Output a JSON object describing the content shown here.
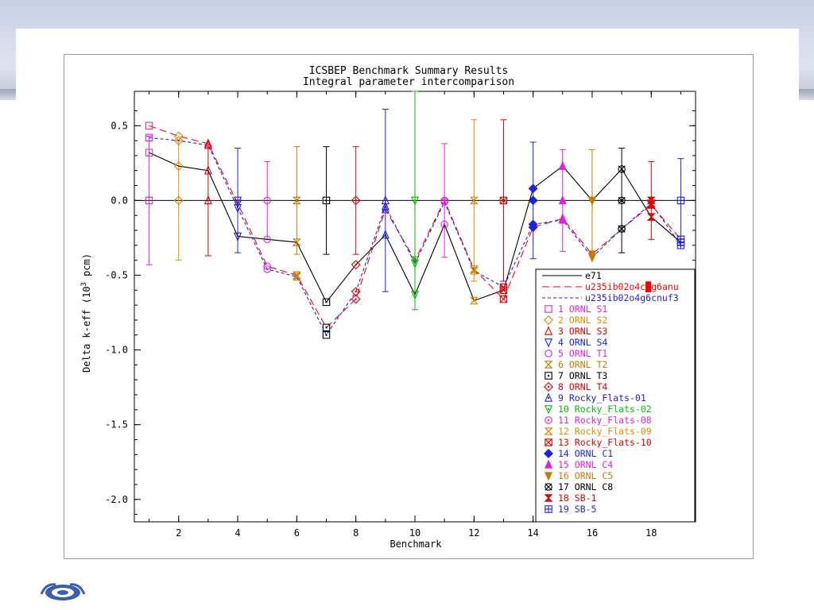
{
  "chart_data": {
    "type": "scatter",
    "title": "ICSBEP Benchmark Summary Results",
    "subtitle": "Integral parameter intercomparison",
    "xlabel": "Benchmark",
    "ylabel_main": "Delta k-eff (10",
    "ylabel_sup": "3",
    "ylabel_end": " pcm)",
    "xlim": [
      0.5,
      19.5
    ],
    "ylim": [
      -2.15,
      0.73
    ],
    "xticks": [
      2,
      4,
      6,
      8,
      10,
      12,
      14,
      16,
      18
    ],
    "yticks": [
      0.5,
      0.0,
      -0.5,
      -1.0,
      -1.5,
      -2.0
    ],
    "ytick_labels": [
      "0.5",
      "0.0",
      "-0.5",
      "-1.0",
      "-1.5",
      "-2.0"
    ],
    "x": [
      1,
      2,
      3,
      4,
      5,
      6,
      7,
      8,
      9,
      10,
      11,
      12,
      13,
      14,
      15,
      16,
      17,
      18,
      19
    ],
    "zero_line": 0,
    "errors": [
      0.43,
      0.4,
      0.37,
      0.35,
      0.26,
      0.36,
      0.36,
      0.36,
      0.61,
      0.73,
      0.38,
      0.54,
      0.54,
      0.39,
      0.34,
      0.34,
      0.35,
      0.26,
      0.28
    ],
    "error_colors": [
      "#e020e0",
      "#e08a00",
      "#e00000",
      "#2020e0",
      "#e020e0",
      "#c87800",
      "#000000",
      "#e00000",
      "#2020e0",
      "#00c000",
      "#e020e0",
      "#e08a00",
      "#e00000",
      "#2020e0",
      "#e020e0",
      "#c87800",
      "#000000",
      "#e00000",
      "#2020e0"
    ],
    "series": [
      {
        "name": "e71",
        "color": "#000000",
        "dash": "solid",
        "values": [
          0.32,
          0.23,
          0.2,
          -0.24,
          -0.26,
          -0.28,
          -0.68,
          -0.43,
          -0.23,
          -0.63,
          -0.16,
          -0.67,
          -0.6,
          0.08,
          0.23,
          0.0,
          0.21,
          -0.11,
          -0.28
        ]
      },
      {
        "name": "u235ib02o4c█g6anu",
        "color": "#ff0000",
        "dash": "long",
        "values": [
          0.5,
          0.43,
          0.38,
          -0.02,
          -0.44,
          -0.5,
          -0.85,
          -0.66,
          -0.06,
          -0.4,
          0.0,
          -0.46,
          -0.66,
          -0.18,
          -0.12,
          -0.36,
          -0.19,
          -0.03,
          -0.26
        ]
      },
      {
        "name": "u235ib02o4g6cnuf3",
        "color": "#2020e0",
        "dash": "short",
        "values": [
          0.42,
          0.4,
          0.37,
          -0.05,
          -0.46,
          -0.51,
          -0.9,
          -0.61,
          -0.04,
          -0.42,
          -0.01,
          -0.47,
          -0.58,
          -0.16,
          -0.13,
          -0.38,
          -0.19,
          -0.02,
          -0.3
        ]
      }
    ],
    "legend_position": "bottom-right",
    "legend_markers": [
      {
        "label": "1 ORNL S1",
        "color": "#e020e0",
        "marker": "square"
      },
      {
        "label": "2 ORNL S2",
        "color": "#e08a00",
        "marker": "diamond"
      },
      {
        "label": "3 ORNL S3",
        "color": "#e00000",
        "marker": "triangle-up"
      },
      {
        "label": "4 ORNL S4",
        "color": "#2020e0",
        "marker": "triangle-down"
      },
      {
        "label": "5 ORNL T1",
        "color": "#e020e0",
        "marker": "circle"
      },
      {
        "label": "6 ORNL T2",
        "color": "#c87800",
        "marker": "hourglass"
      },
      {
        "label": "7 ORNL T3",
        "color": "#000000",
        "marker": "square-dot"
      },
      {
        "label": "8 ORNL T4",
        "color": "#e00000",
        "marker": "diamond-dot"
      },
      {
        "label": "9 Rocky_Flats-01",
        "color": "#2020e0",
        "marker": "triangle-up-dot"
      },
      {
        "label": "10 Rocky_Flats-02",
        "color": "#00c000",
        "marker": "triangle-down-dot"
      },
      {
        "label": "11 Rocky_Flats-08",
        "color": "#e020e0",
        "marker": "circle-dot"
      },
      {
        "label": "12 Rocky_Flats-09",
        "color": "#e08a00",
        "marker": "hourglass-x"
      },
      {
        "label": "13 Rocky_Flats-10",
        "color": "#e00000",
        "marker": "square-x"
      },
      {
        "label": "14 ORNL C1",
        "color": "#2020e0",
        "marker": "diamond-fill"
      },
      {
        "label": "15 ORNL C4",
        "color": "#e020e0",
        "marker": "triangle-up-fill"
      },
      {
        "label": "16 ORNL C5",
        "color": "#c87800",
        "marker": "triangle-down-fill"
      },
      {
        "label": "17 ORNL C8",
        "color": "#000000",
        "marker": "circle-x"
      },
      {
        "label": "18 SB-1",
        "color": "#e00000",
        "marker": "hourglass-fill"
      },
      {
        "label": "19 SB-5",
        "color": "#2020e0",
        "marker": "square-plus"
      }
    ]
  }
}
